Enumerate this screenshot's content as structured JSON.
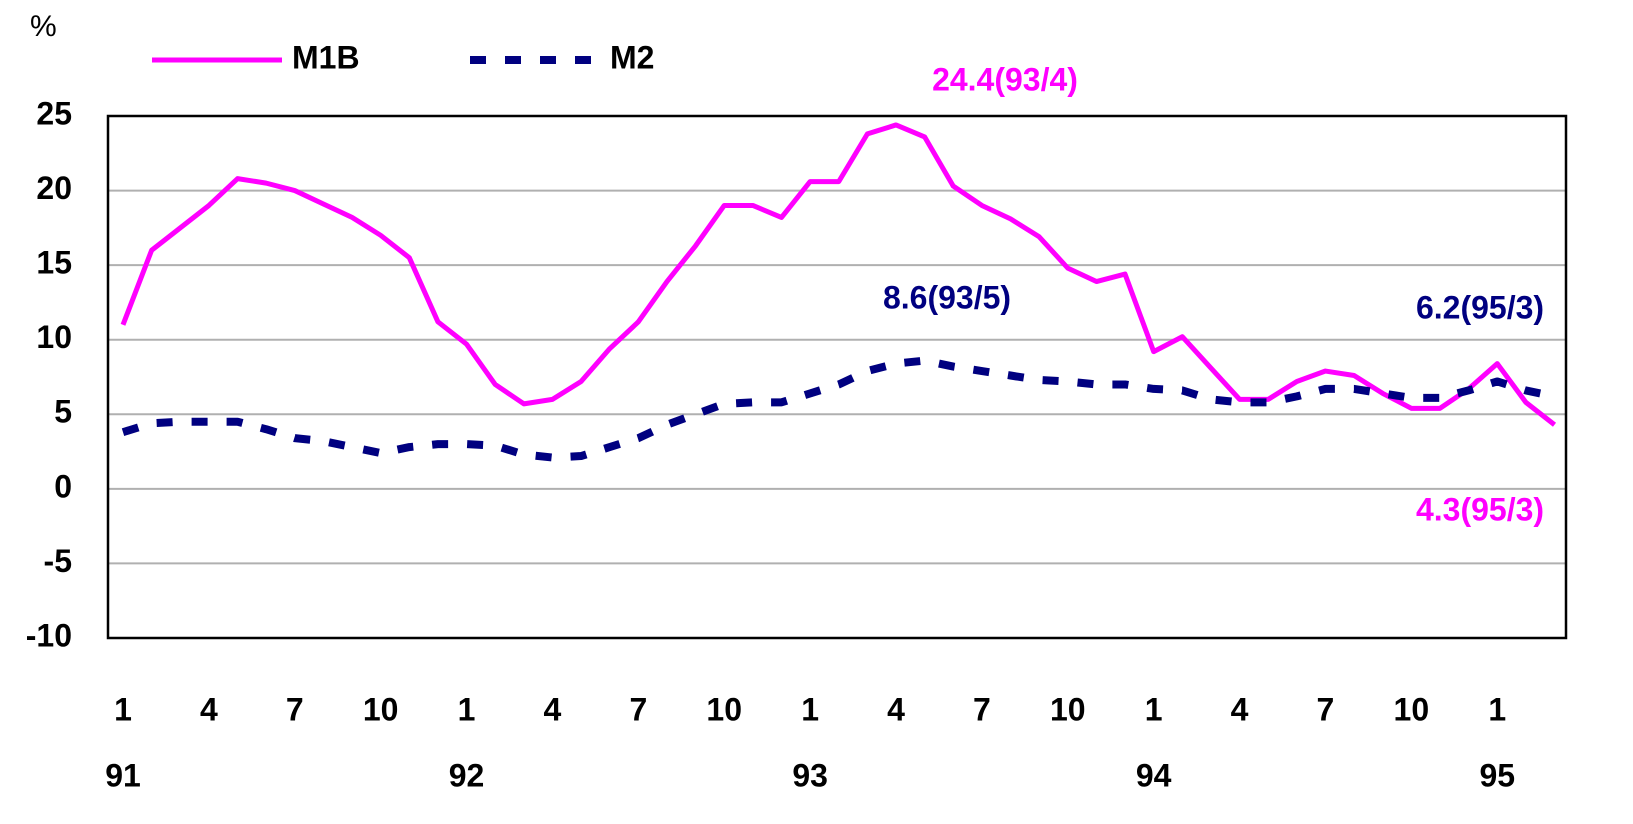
{
  "chart_data": {
    "type": "line",
    "y_unit": "%",
    "categories": [
      "1",
      null,
      null,
      "4",
      null,
      null,
      "7",
      null,
      null,
      "10",
      null,
      null,
      "1",
      null,
      null,
      "4",
      null,
      null,
      "7",
      null,
      null,
      "10",
      null,
      null,
      "1",
      null,
      null,
      "4",
      null,
      null,
      "7",
      null,
      null,
      "10",
      null,
      null,
      "1",
      null,
      null,
      "4",
      null,
      null,
      "7",
      null,
      null,
      "10",
      null,
      null,
      "1",
      null,
      null
    ],
    "year_categories": [
      "91",
      null,
      null,
      null,
      null,
      null,
      null,
      null,
      null,
      null,
      null,
      null,
      "92",
      null,
      null,
      null,
      null,
      null,
      null,
      null,
      null,
      null,
      null,
      null,
      "93",
      null,
      null,
      null,
      null,
      null,
      null,
      null,
      null,
      null,
      null,
      null,
      "94",
      null,
      null,
      null,
      null,
      null,
      null,
      null,
      null,
      null,
      null,
      null,
      "95",
      null,
      null
    ],
    "series": [
      {
        "name": "M1B",
        "color": "#ff00ff",
        "dashed": false,
        "values": [
          11,
          16,
          17.5,
          19,
          20.8,
          20.5,
          20,
          19.1,
          18.2,
          17,
          15.5,
          11.2,
          9.7,
          7,
          5.7,
          6,
          7.2,
          9.4,
          11.2,
          13.9,
          16.3,
          19,
          19,
          18.2,
          20.6,
          20.6,
          23.8,
          24.4,
          23.6,
          20.3,
          19,
          18.1,
          16.9,
          14.8,
          13.9,
          14.4,
          9.2,
          10.2,
          8.1,
          6,
          6,
          7.2,
          7.9,
          7.6,
          6.4,
          5.4,
          5.4,
          6.7,
          8.4,
          5.8,
          4.3
        ]
      },
      {
        "name": "M2",
        "color": "#000080",
        "dashed": true,
        "values": [
          3.8,
          4.4,
          4.5,
          4.5,
          4.5,
          4,
          3.4,
          3.2,
          2.8,
          2.4,
          2.8,
          3,
          3,
          2.9,
          2.3,
          2.1,
          2.2,
          2.8,
          3.4,
          4.3,
          5,
          5.7,
          5.8,
          5.8,
          6.4,
          7,
          7.9,
          8.4,
          8.6,
          8.2,
          7.9,
          7.6,
          7.3,
          7.2,
          7,
          7,
          6.7,
          6.6,
          6,
          5.8,
          5.8,
          6.2,
          6.7,
          6.7,
          6.4,
          6.1,
          6.1,
          6.6,
          7.2,
          6.6,
          6.2
        ]
      }
    ],
    "annotations": [
      {
        "text": "24.4(93/4)",
        "color": "#ff00ff"
      },
      {
        "text": "8.6(93/5)",
        "color": "#000080"
      },
      {
        "text": "6.2(95/3)",
        "color": "#000080"
      },
      {
        "text": "4.3(95/3)",
        "color": "#ff00ff"
      }
    ],
    "ylim": [
      -10,
      25
    ],
    "yticks": [
      -10,
      -5,
      0,
      5,
      10,
      15,
      20,
      25
    ],
    "grid": true
  }
}
